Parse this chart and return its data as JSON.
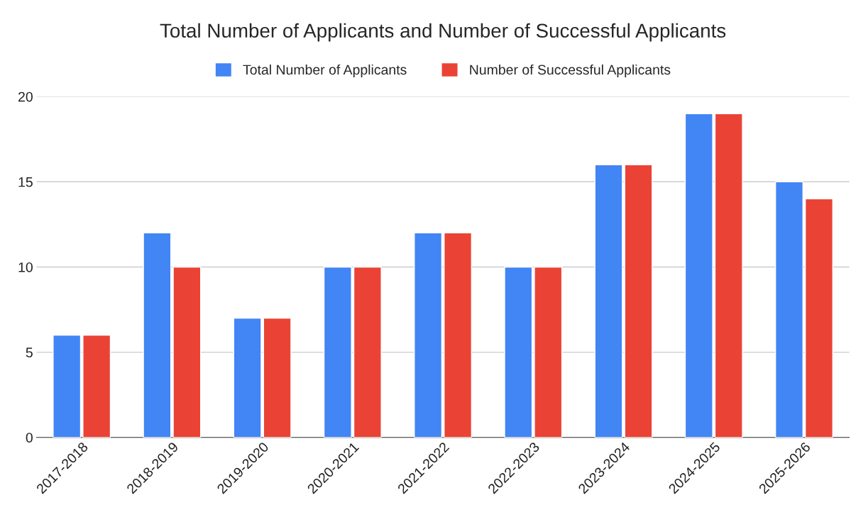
{
  "chart_data": {
    "type": "bar",
    "title": "Total Number of Applicants and Number of Successful Applicants",
    "categories": [
      "2017-2018",
      "2018-2019",
      "2019-2020",
      "2020-2021",
      "2021-2022",
      "2022-2023",
      "2023-2024",
      "2024-2025",
      "2025-2026"
    ],
    "series": [
      {
        "name": "Total Number of Applicants",
        "color": "#4285f4",
        "values": [
          6,
          12,
          7,
          10,
          12,
          10,
          16,
          19,
          15
        ]
      },
      {
        "name": "Number of Successful Applicants",
        "color": "#ea4335",
        "values": [
          6,
          10,
          7,
          10,
          12,
          10,
          16,
          19,
          14
        ]
      }
    ],
    "ylim": [
      0,
      20
    ],
    "yticks": [
      0,
      5,
      10,
      15,
      20
    ],
    "grid": "y",
    "legend": "top"
  }
}
